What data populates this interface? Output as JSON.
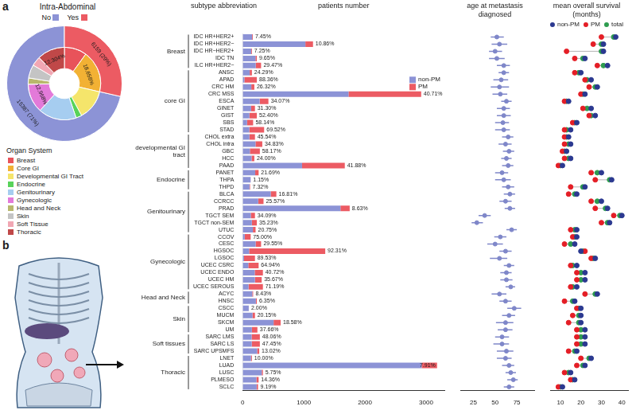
{
  "panel_labels": [
    "a",
    "b"
  ],
  "chart_data": [
    {
      "type": "doughnut",
      "title": "Intra-Abdominal",
      "legend": "bottom",
      "legend_title": "Organ System",
      "rings": [
        {
          "categories": [
            "No",
            "Yes"
          ],
          "values": [
            15387,
            6159
          ],
          "value_labels": [
            "15387 (71%)",
            "6159 (29%)"
          ],
          "colors": [
            "#8c93d6",
            "#ec5b63"
          ]
        },
        {
          "categories": [
            "Breast",
            "Core GI",
            "Developmental GI Tract",
            "Endocrine",
            "Genitourinary",
            "Gynecologic",
            "Head and Neck",
            "Skin",
            "Soft Tissue",
            "Thoracic"
          ],
          "values": [
            10.0,
            18.656,
            13.5,
            2.6,
            17.0,
            12.968,
            2.8,
            6.0,
            4.2,
            12.304
          ],
          "value_labels": [
            null,
            "18.656%",
            null,
            null,
            null,
            "12.968%",
            null,
            null,
            null,
            "12.304%"
          ],
          "colors": [
            "#e8535a",
            "#f2b134",
            "#f5e56b",
            "#58d35a",
            "#a6cdf0",
            "#e37ad9",
            "#b9b86d",
            "#c4c4c4",
            "#f1a7b3",
            "#c04848"
          ]
        }
      ]
    },
    {
      "type": "bar",
      "orientation": "horizontal",
      "stacked": true,
      "grid": false,
      "legend": "upper right",
      "title": "patients number",
      "category_header": "subtype abbreviation",
      "categories": [
        "IDC HR+HER2+",
        "IDC HR+HER2−",
        "IDC HR−HER2+",
        "IDC TN",
        "ILC HR+HER2−",
        "ANSC",
        "APAD",
        "CRC HM",
        "CRC MSS",
        "ESCA",
        "GINET",
        "GIST",
        "SBS",
        "STAD",
        "CHOL extra",
        "CHOL intra",
        "GBC",
        "HCC",
        "PAAD",
        "PANET",
        "THPA",
        "THPD",
        "BLCA",
        "CCRCC",
        "PRAD",
        "TGCT SEM",
        "TGCT non-SEM",
        "UTUC",
        "CCOV",
        "CESC",
        "HGSOC",
        "LGSOC",
        "UCEC CSRC",
        "UCEC ENDO",
        "UCEC HM",
        "UCEC SEROUS",
        "ACYC",
        "HNSC",
        "CSCC",
        "MUCM",
        "SKCM",
        "UM",
        "SARC LMS",
        "SARC LS",
        "SARC UPSMFS",
        "LNET",
        "LUAD",
        "LUSC",
        "PLMESO",
        "SCLC"
      ],
      "groups": [
        {
          "name": "Breast",
          "first": "IDC HR+HER2+",
          "last": "ILC HR+HER2−"
        },
        {
          "name": "core GI",
          "first": "ANSC",
          "last": "STAD"
        },
        {
          "name": "developmental GI tract",
          "first": "CHOL extra",
          "last": "PAAD"
        },
        {
          "name": "Endocrine",
          "first": "PANET",
          "last": "THPD"
        },
        {
          "name": "Genitourinary",
          "first": "BLCA",
          "last": "UTUC"
        },
        {
          "name": "Gynecologic",
          "first": "CCOV",
          "last": "UCEC SEROUS"
        },
        {
          "name": "Head and Neck",
          "first": "ACYC",
          "last": "HNSC"
        },
        {
          "name": "Skin",
          "first": "CSCC",
          "last": "UM"
        },
        {
          "name": "Soft tissues",
          "first": "SARC LMS",
          "last": "SARC UPSMFS"
        },
        {
          "name": "Thoracic",
          "first": "LNET",
          "last": "SCLC"
        }
      ],
      "series": [
        {
          "name": "non-PM",
          "color": "#8c93d6",
          "values": [
            153,
            1025,
            139,
            208,
            212,
            114,
            27,
            140,
            1731,
            277,
            137,
            109,
            71,
            107,
            109,
            209,
            117,
            144,
            971,
            204,
            129,
            111,
            458,
            253,
            1599,
            132,
            149,
            166,
            32,
            211,
            104,
            21,
            91,
            196,
            199,
            95,
            156,
            215,
            98,
            160,
            505,
            150,
            145,
            147,
            235,
            135,
            2928,
            311,
            223,
            227
          ]
        },
        {
          "name": "PM",
          "color": "#ec5b63",
          "values": [
            12,
            125,
            11,
            22,
            88,
            36,
            203,
            50,
            1189,
            143,
            63,
            121,
            99,
            243,
            91,
            111,
            163,
            46,
            699,
            56,
            1,
            9,
            92,
            87,
            151,
            68,
            81,
            44,
            98,
            89,
            1246,
            179,
            169,
            134,
            111,
            235,
            14,
            15,
            2,
            40,
            115,
            90,
            135,
            133,
            35,
            15,
            252,
            19,
            37,
            23
          ]
        }
      ],
      "pm_share_labels": [
        "7.45%",
        "10.86%",
        "7.25%",
        "9.65%",
        "29.47%",
        "24.29%",
        "88.36%",
        "26.32%",
        "40.71%",
        "34.07%",
        "31.30%",
        "52.40%",
        "58.14%",
        "69.52%",
        "45.54%",
        "34.83%",
        "58.17%",
        "24.00%",
        "41.88%",
        "21.69%",
        "1.15%",
        "7.32%",
        "16.81%",
        "25.57%",
        "8.63%",
        "34.09%",
        "35.23%",
        "20.75%",
        "75.00%",
        "29.55%",
        "92.31%",
        "89.53%",
        "64.94%",
        "40.72%",
        "35.67%",
        "71.19%",
        "8.43%",
        "6.35%",
        "2.00%",
        "20.15%",
        "18.58%",
        "37.66%",
        "48.06%",
        "47.45%",
        "13.02%",
        "10.00%",
        "7.91%",
        "5.75%",
        "14.36%",
        "9.19%"
      ],
      "xlim": [
        0,
        3300
      ],
      "xticks": [
        0,
        1000,
        2000,
        3000
      ]
    },
    {
      "type": "scatter",
      "title": "age at metastasis diagnosed",
      "grid": false,
      "color": "#7f87c9",
      "marker": "circle",
      "values": [
        52,
        55,
        50,
        52,
        60,
        60,
        57,
        55,
        56,
        63,
        60,
        60,
        59,
        60,
        65,
        62,
        66,
        63,
        65,
        58,
        60,
        65,
        67,
        62,
        67,
        38,
        29,
        69,
        56,
        50,
        62,
        55,
        66,
        63,
        63,
        68,
        55,
        62,
        72,
        66,
        62,
        62,
        58,
        58,
        63,
        62,
        66,
        68,
        71,
        66
      ],
      "low": [
        45,
        46,
        43,
        43,
        52,
        54,
        48,
        45,
        47,
        57,
        52,
        52,
        50,
        50,
        58,
        54,
        59,
        57,
        58,
        50,
        50,
        58,
        60,
        55,
        61,
        31,
        23,
        63,
        49,
        41,
        55,
        44,
        60,
        56,
        56,
        62,
        46,
        55,
        64,
        58,
        51,
        53,
        50,
        48,
        52,
        52,
        58,
        62,
        64,
        60
      ],
      "high": [
        60,
        64,
        58,
        61,
        67,
        66,
        65,
        66,
        64,
        69,
        67,
        68,
        66,
        67,
        71,
        69,
        72,
        69,
        71,
        65,
        68,
        72,
        73,
        69,
        73,
        45,
        36,
        75,
        63,
        59,
        69,
        64,
        72,
        69,
        70,
        73,
        63,
        69,
        80,
        73,
        71,
        70,
        66,
        66,
        71,
        69,
        72,
        74,
        76,
        72
      ],
      "xlim": [
        10,
        95
      ],
      "xticks": [
        25,
        50,
        75
      ]
    },
    {
      "type": "scatter",
      "title": "mean overall survival (months)",
      "grid": false,
      "legend": "top",
      "marker": "circle",
      "series": [
        {
          "name": "non-PM",
          "color": "#2b3990",
          "values": [
            37,
            31,
            31,
            22,
            33,
            20,
            25,
            28,
            22,
            14,
            25,
            27,
            18,
            15,
            14,
            15,
            13,
            15,
            11,
            30,
            35,
            22,
            18,
            30,
            33,
            40,
            34,
            18,
            18,
            17,
            20,
            27,
            18,
            22,
            22,
            18,
            28,
            17,
            20,
            20,
            20,
            22,
            22,
            22,
            18,
            25,
            22,
            15,
            17,
            11
          ]
        },
        {
          "name": "PM",
          "color": "#e41e26",
          "values": [
            30,
            26,
            13,
            17,
            28,
            17,
            22,
            24,
            20,
            12,
            21,
            24,
            16,
            12,
            12,
            12,
            11,
            12,
            9,
            25,
            27,
            15,
            14,
            25,
            27,
            36,
            30,
            15,
            16,
            12,
            22,
            25,
            15,
            18,
            18,
            15,
            22,
            12,
            18,
            16,
            14,
            18,
            18,
            18,
            14,
            20,
            18,
            12,
            15,
            9
          ]
        },
        {
          "name": "total",
          "color": "#2e9c4f",
          "values": [
            36,
            30,
            30,
            21,
            31,
            19,
            23,
            27,
            21,
            13,
            23,
            25,
            17,
            13,
            13,
            14,
            12,
            14,
            10,
            28,
            34,
            21,
            17,
            28,
            32,
            39,
            33,
            17,
            17,
            15,
            21,
            26,
            16,
            20,
            20,
            16,
            27,
            16,
            19,
            19,
            19,
            20,
            20,
            20,
            17,
            24,
            21,
            14,
            16,
            10
          ]
        }
      ],
      "xlim": [
        5,
        43
      ],
      "xticks": [
        10,
        20,
        30,
        40
      ]
    }
  ]
}
